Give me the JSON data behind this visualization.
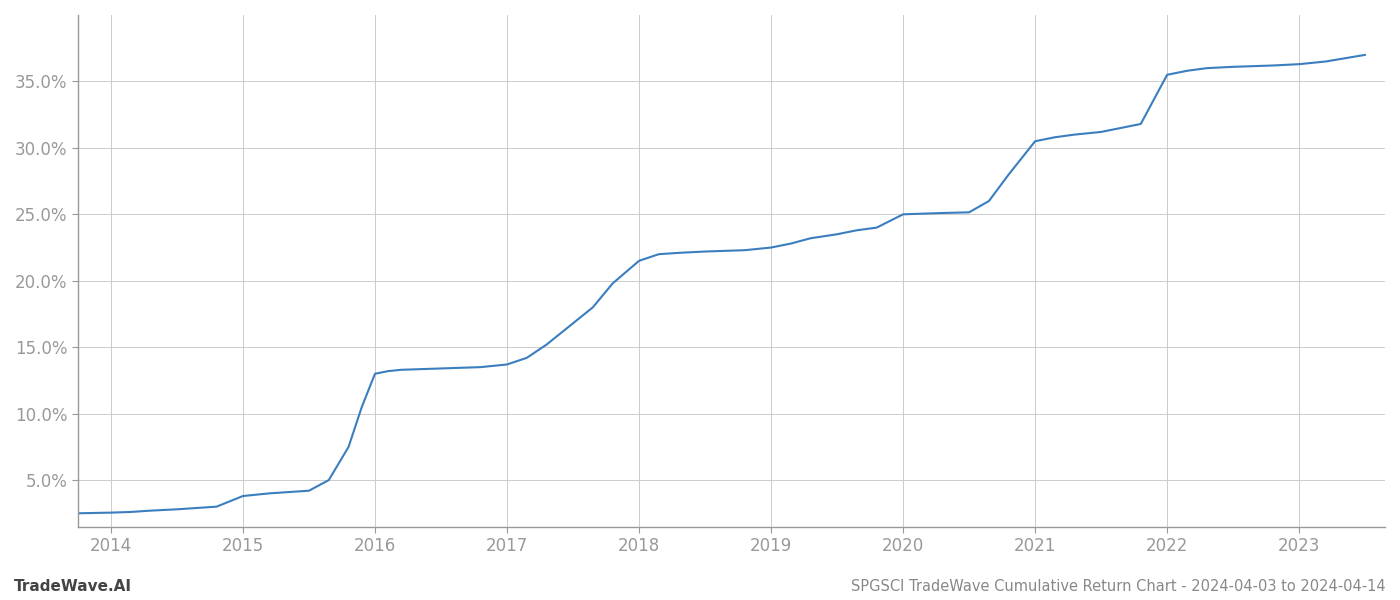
{
  "title": "SPGSCI TradeWave Cumulative Return Chart - 2024-04-03 to 2024-04-14",
  "watermark": "TradeWave.AI",
  "line_color": "#3a7ebf",
  "background_color": "#ffffff",
  "grid_color": "#cccccc",
  "x_years": [
    2014,
    2015,
    2016,
    2017,
    2018,
    2019,
    2020,
    2021,
    2022,
    2023
  ],
  "x_data": [
    2013.75,
    2014.0,
    2014.15,
    2014.3,
    2014.5,
    2014.65,
    2014.8,
    2015.0,
    2015.1,
    2015.2,
    2015.35,
    2015.5,
    2015.65,
    2015.8,
    2015.9,
    2016.0,
    2016.1,
    2016.2,
    2016.35,
    2016.5,
    2016.65,
    2016.8,
    2017.0,
    2017.15,
    2017.3,
    2017.5,
    2017.65,
    2017.8,
    2018.0,
    2018.15,
    2018.3,
    2018.5,
    2018.65,
    2018.8,
    2019.0,
    2019.15,
    2019.3,
    2019.5,
    2019.65,
    2019.8,
    2020.0,
    2020.15,
    2020.3,
    2020.5,
    2020.65,
    2020.8,
    2021.0,
    2021.15,
    2021.3,
    2021.5,
    2021.65,
    2021.8,
    2022.0,
    2022.15,
    2022.3,
    2022.5,
    2022.65,
    2022.8,
    2023.0,
    2023.2,
    2023.5
  ],
  "y_data": [
    2.5,
    2.55,
    2.6,
    2.7,
    2.8,
    2.9,
    3.0,
    3.8,
    3.9,
    4.0,
    4.1,
    4.2,
    5.0,
    7.5,
    10.5,
    13.0,
    13.2,
    13.3,
    13.35,
    13.4,
    13.45,
    13.5,
    13.7,
    14.2,
    15.2,
    16.8,
    18.0,
    19.8,
    21.5,
    22.0,
    22.1,
    22.2,
    22.25,
    22.3,
    22.5,
    22.8,
    23.2,
    23.5,
    23.8,
    24.0,
    25.0,
    25.05,
    25.1,
    25.15,
    26.0,
    28.0,
    30.5,
    30.8,
    31.0,
    31.2,
    31.5,
    31.8,
    35.5,
    35.8,
    36.0,
    36.1,
    36.15,
    36.2,
    36.3,
    36.5,
    37.0
  ],
  "ylim_bottom": 1.5,
  "ylim_top": 40.0,
  "xlim": [
    2013.75,
    2023.65
  ],
  "yticks": [
    5.0,
    10.0,
    15.0,
    20.0,
    25.0,
    30.0,
    35.0
  ],
  "line_width": 1.5,
  "title_fontsize": 10.5,
  "tick_fontsize": 12,
  "watermark_fontsize": 11,
  "tick_color": "#999999",
  "spine_color": "#999999"
}
